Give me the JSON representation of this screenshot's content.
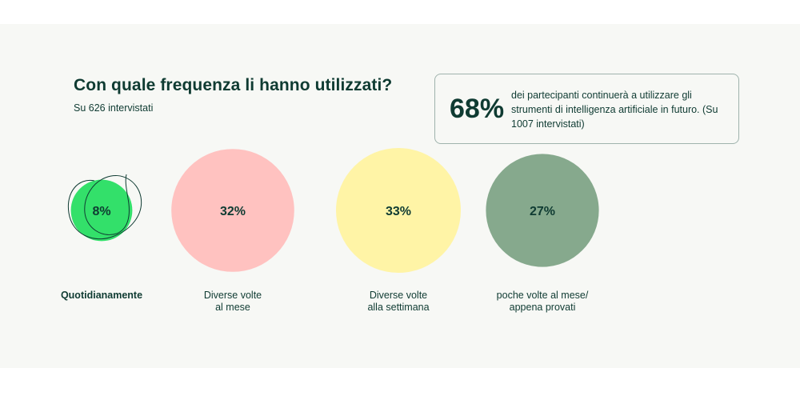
{
  "chart_data": {
    "type": "bubble",
    "title": "Con quale frequenza li hanno utilizzati?",
    "subtitle": "Su 626 intervistati",
    "categories": [
      "Quotidianamente",
      "Diverse volte\nal mese",
      "Diverse volte\nalla settimana",
      "poche volte al mese/\nappena provati"
    ],
    "values": [
      8,
      32,
      33,
      27
    ],
    "value_labels": [
      "8%",
      "32%",
      "33%",
      "27%"
    ],
    "colors": [
      "#33e06a",
      "#ffc2c0",
      "#fff4a6",
      "#86a98d"
    ],
    "highlighted_category": "Quotidianamente"
  },
  "callout": {
    "value": "68%",
    "text": "dei partecipanti continuerà a utilizzare gli strumenti di intelligenza artificiale in futuro. (Su 1007 intervistati)"
  }
}
